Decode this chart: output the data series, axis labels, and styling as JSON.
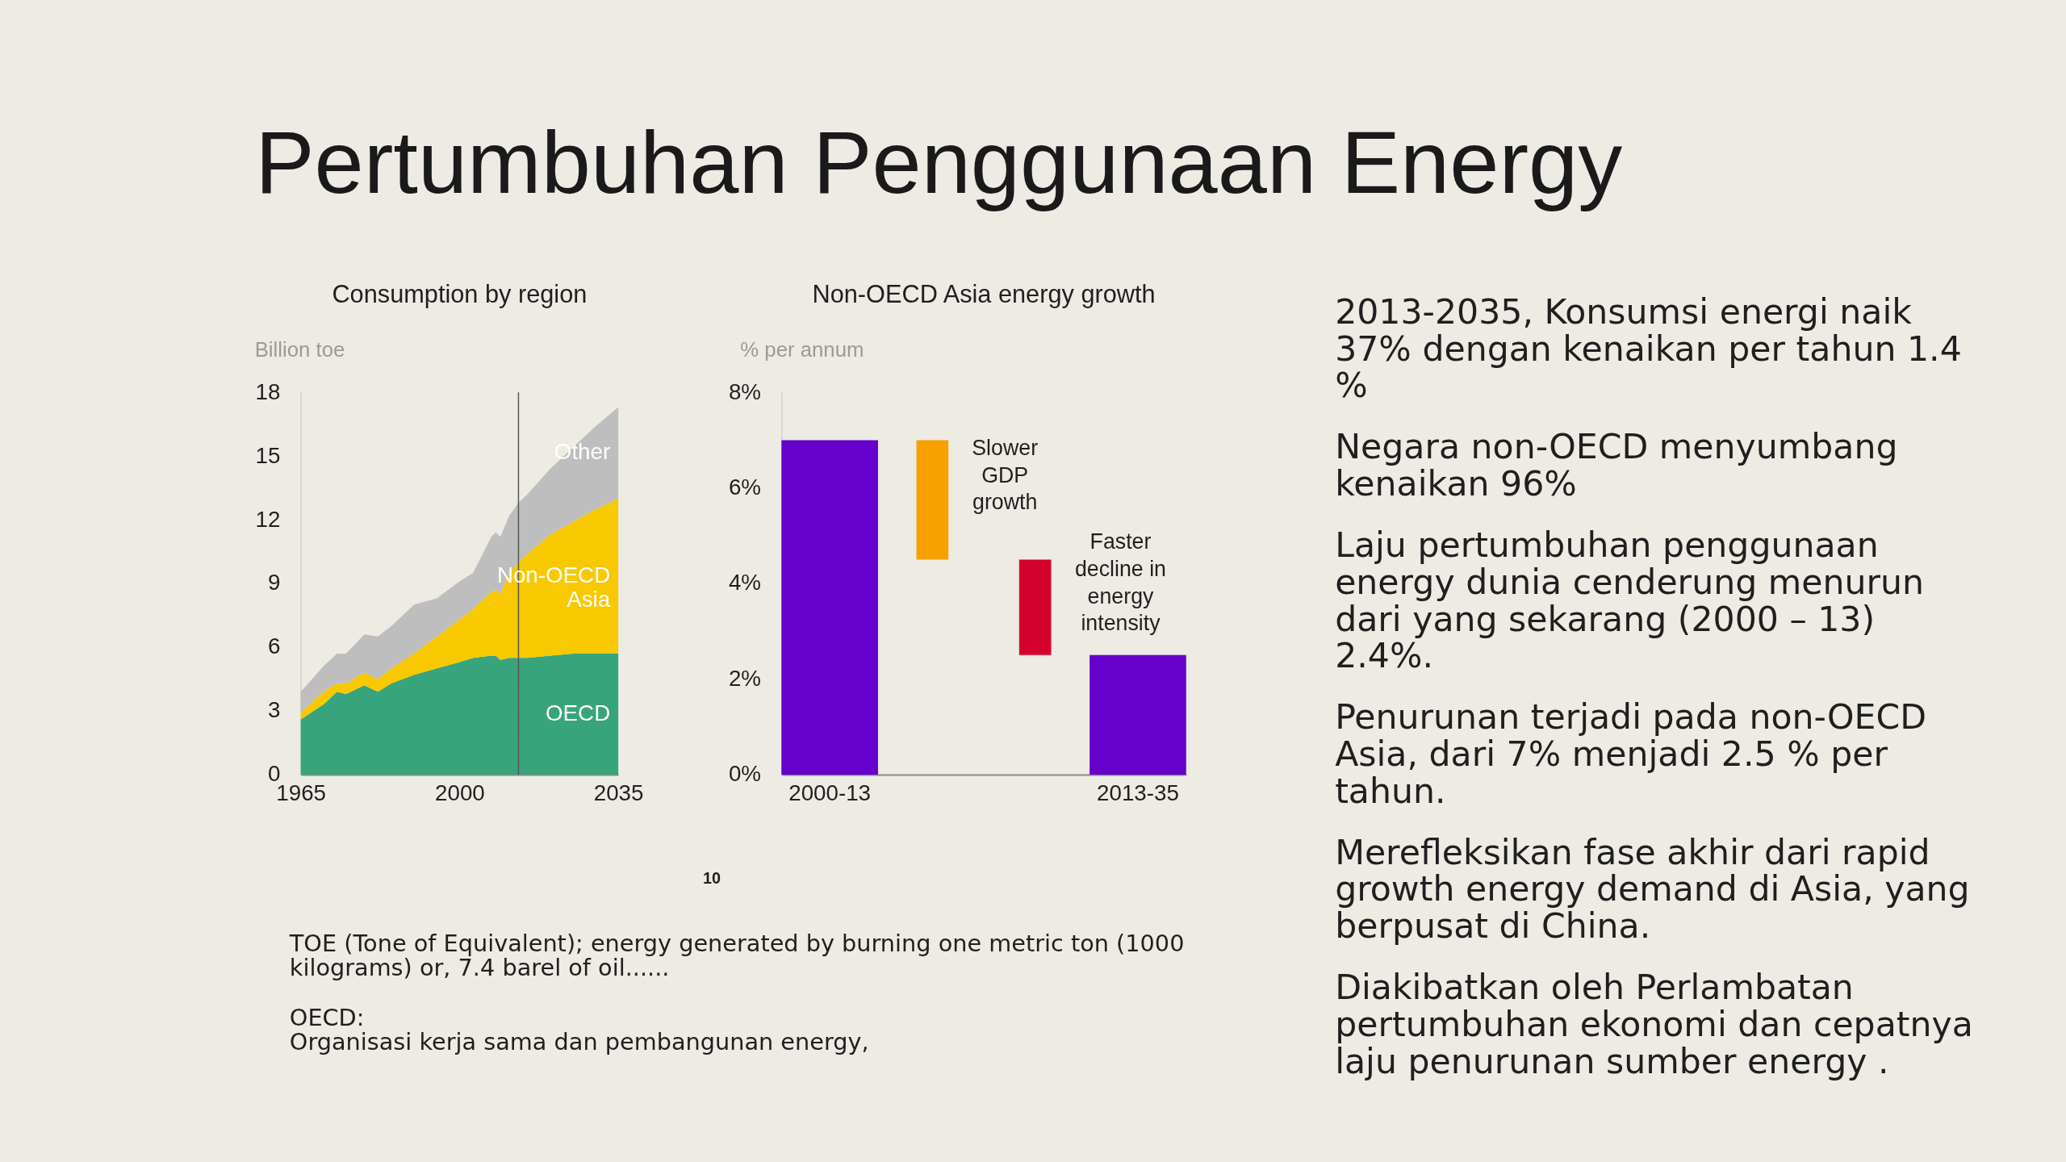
{
  "chart_data": [
    {
      "type": "other",
      "title": "Pertumbuhan Penggunaan Energy"
    },
    {
      "type": "area",
      "title": "Consumption by region",
      "ylabel": "Billion toe",
      "stacked": true,
      "x": [
        1965,
        1970,
        1973,
        1975,
        1979,
        1982,
        1985,
        1990,
        1995,
        2000,
        2003,
        2007,
        2008,
        2009,
        2011,
        2013,
        2015,
        2020,
        2025,
        2030,
        2035
      ],
      "series": [
        {
          "name": "OECD",
          "color": "#38a47c",
          "values": [
            2.6,
            3.3,
            3.9,
            3.8,
            4.2,
            3.9,
            4.3,
            4.7,
            5.0,
            5.3,
            5.5,
            5.6,
            5.6,
            5.4,
            5.5,
            5.5,
            5.5,
            5.6,
            5.7,
            5.7,
            5.7
          ]
        },
        {
          "name": "Non-OECD Asia",
          "color": "#f8c800",
          "values": [
            0.3,
            0.6,
            0.4,
            0.5,
            0.6,
            0.6,
            0.7,
            1.0,
            1.5,
            2.0,
            2.3,
            3.0,
            3.1,
            3.1,
            4.0,
            4.5,
            4.9,
            5.7,
            6.2,
            6.8,
            7.3
          ]
        },
        {
          "name": "Other",
          "color": "#bebebe",
          "values": [
            1.0,
            1.2,
            1.4,
            1.4,
            1.8,
            2.0,
            2.0,
            2.3,
            1.8,
            1.8,
            1.7,
            2.6,
            2.7,
            2.7,
            2.7,
            2.8,
            2.8,
            3.1,
            3.5,
            3.9,
            4.3
          ]
        }
      ],
      "xlim": [
        1965,
        2035
      ],
      "xticks": [
        1965,
        2000,
        2035
      ],
      "ylim": [
        0,
        18
      ],
      "yticks": [
        0,
        3,
        6,
        9,
        12,
        15,
        18
      ],
      "ref_lines": [
        {
          "axis": "x",
          "value": 2013,
          "color": "#555555"
        }
      ]
    },
    {
      "type": "bar",
      "title": "Non-OECD Asia energy growth",
      "ylabel": "% per annum",
      "categories": [
        "2000-13",
        null,
        null,
        "2013-35"
      ],
      "values": [
        7,
        -2.5,
        -2,
        2.5
      ],
      "base": [
        0,
        7,
        4.5,
        0
      ],
      "colors": [
        "#6600cc",
        "#f7a000",
        "#d4002d",
        "#6600cc"
      ],
      "ylim": [
        0,
        8
      ],
      "yticks": [
        {
          "value": 0,
          "label": "0%"
        },
        {
          "value": 2,
          "label": "2%"
        },
        {
          "value": 4,
          "label": "4%"
        },
        {
          "value": 6,
          "label": "6%"
        },
        {
          "value": 8,
          "label": "8%"
        }
      ],
      "annotations": [
        "Slower GDP growth",
        "Faster decline in energy intensity",
        "10"
      ]
    },
    {
      "type": "other",
      "annotations": [
        "TOE (Tone of Equivalent); energy generated by burning one metric ton (1000 kilograms) or, 7.4 barel of oil......",
        "OECD:\nOrganisasi kerja sama dan pembangunan energy,"
      ]
    },
    {
      "type": "other",
      "annotations": [
        "2013-2035, Konsumsi energi naik 37% dengan kenaikan per tahun 1.4 %",
        "Negara non-OECD menyumbang kenaikan 96%",
        "Laju pertumbuhan penggunaan energy dunia cenderung menurun dari yang sekarang (2000 – 13) 2.4%.",
        "Penurunan terjadi pada non-OECD Asia, dari 7% menjadi 2.5 % per tahun.",
        "Merefleksikan fase akhir dari rapid growth energy demand di Asia, yang berpusat di China.",
        "Diakibatkan oleh Perlambatan pertumbuhan ekonomi dan cepatnya laju penurunan sumber energy ."
      ]
    }
  ]
}
